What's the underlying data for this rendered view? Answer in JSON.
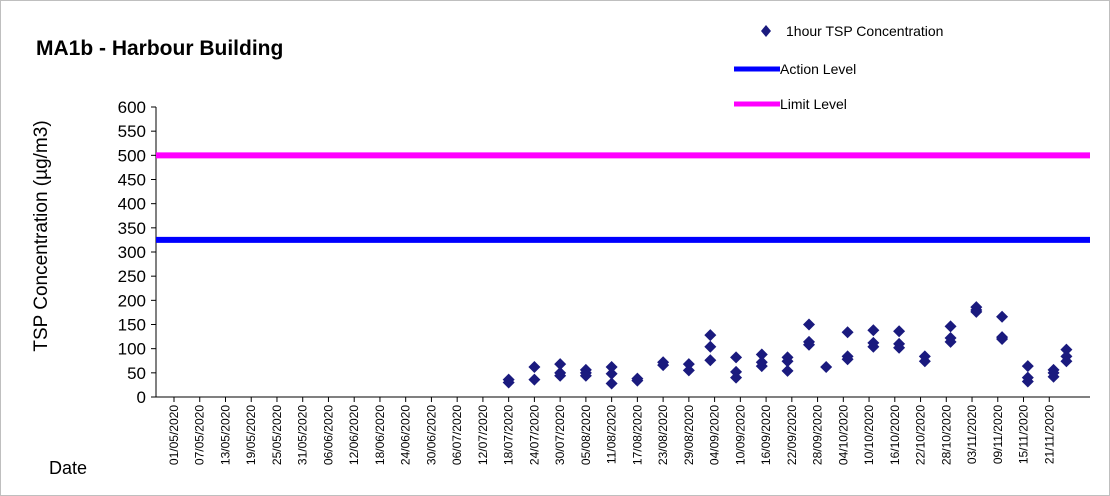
{
  "chart_data": {
    "type": "scatter",
    "title": "MA1b - Harbour Building",
    "xlabel": "Date",
    "ylabel": "TSP Concentration (µg/m3)",
    "ylim": [
      0,
      600
    ],
    "y_ticks": [
      "0",
      "50",
      "100",
      "150",
      "200",
      "250",
      "300",
      "350",
      "400",
      "450",
      "500",
      "550",
      "600"
    ],
    "x_range": [
      "01/05/2020",
      "27/11/2020"
    ],
    "x_ticks": [
      "01/05/2020",
      "07/05/2020",
      "13/05/2020",
      "19/05/2020",
      "25/05/2020",
      "31/05/2020",
      "06/06/2020",
      "12/06/2020",
      "18/06/2020",
      "24/06/2020",
      "30/06/2020",
      "06/07/2020",
      "12/07/2020",
      "18/07/2020",
      "24/07/2020",
      "30/07/2020",
      "05/08/2020",
      "11/08/2020",
      "17/08/2020",
      "23/08/2020",
      "29/08/2020",
      "04/09/2020",
      "10/09/2020",
      "16/09/2020",
      "22/09/2020",
      "28/09/2020",
      "04/10/2020",
      "10/10/2020",
      "16/10/2020",
      "22/10/2020",
      "28/10/2020",
      "03/11/2020",
      "09/11/2020",
      "15/11/2020",
      "21/11/2020"
    ],
    "grid": false,
    "legend_position": "top-right",
    "series": [
      {
        "name": "1hour TSP Concentration",
        "type": "scatter",
        "marker": "diamond",
        "color": "#1a1a7e",
        "points": [
          {
            "x": "18/07/2020",
            "y": 36
          },
          {
            "x": "18/07/2020",
            "y": 30
          },
          {
            "x": "24/07/2020",
            "y": 62
          },
          {
            "x": "24/07/2020",
            "y": 36
          },
          {
            "x": "30/07/2020",
            "y": 68
          },
          {
            "x": "30/07/2020",
            "y": 50
          },
          {
            "x": "30/07/2020",
            "y": 44
          },
          {
            "x": "05/08/2020",
            "y": 56
          },
          {
            "x": "05/08/2020",
            "y": 50
          },
          {
            "x": "05/08/2020",
            "y": 44
          },
          {
            "x": "11/08/2020",
            "y": 62
          },
          {
            "x": "11/08/2020",
            "y": 48
          },
          {
            "x": "11/08/2020",
            "y": 28
          },
          {
            "x": "17/08/2020",
            "y": 38
          },
          {
            "x": "17/08/2020",
            "y": 34
          },
          {
            "x": "23/08/2020",
            "y": 72
          },
          {
            "x": "23/08/2020",
            "y": 66
          },
          {
            "x": "29/08/2020",
            "y": 68
          },
          {
            "x": "29/08/2020",
            "y": 55
          },
          {
            "x": "03/09/2020",
            "y": 128
          },
          {
            "x": "03/09/2020",
            "y": 104
          },
          {
            "x": "03/09/2020",
            "y": 76
          },
          {
            "x": "09/09/2020",
            "y": 82
          },
          {
            "x": "09/09/2020",
            "y": 52
          },
          {
            "x": "09/09/2020",
            "y": 40
          },
          {
            "x": "15/09/2020",
            "y": 88
          },
          {
            "x": "15/09/2020",
            "y": 72
          },
          {
            "x": "15/09/2020",
            "y": 64
          },
          {
            "x": "21/09/2020",
            "y": 82
          },
          {
            "x": "21/09/2020",
            "y": 74
          },
          {
            "x": "21/09/2020",
            "y": 54
          },
          {
            "x": "26/09/2020",
            "y": 150
          },
          {
            "x": "26/09/2020",
            "y": 114
          },
          {
            "x": "26/09/2020",
            "y": 108
          },
          {
            "x": "30/09/2020",
            "y": 62
          },
          {
            "x": "05/10/2020",
            "y": 134
          },
          {
            "x": "05/10/2020",
            "y": 84
          },
          {
            "x": "05/10/2020",
            "y": 78
          },
          {
            "x": "11/10/2020",
            "y": 138
          },
          {
            "x": "11/10/2020",
            "y": 112
          },
          {
            "x": "11/10/2020",
            "y": 104
          },
          {
            "x": "17/10/2020",
            "y": 136
          },
          {
            "x": "17/10/2020",
            "y": 110
          },
          {
            "x": "17/10/2020",
            "y": 102
          },
          {
            "x": "23/10/2020",
            "y": 84
          },
          {
            "x": "23/10/2020",
            "y": 74
          },
          {
            "x": "29/10/2020",
            "y": 146
          },
          {
            "x": "29/10/2020",
            "y": 122
          },
          {
            "x": "29/10/2020",
            "y": 114
          },
          {
            "x": "04/11/2020",
            "y": 186
          },
          {
            "x": "04/11/2020",
            "y": 180
          },
          {
            "x": "04/11/2020",
            "y": 176
          },
          {
            "x": "10/11/2020",
            "y": 166
          },
          {
            "x": "10/11/2020",
            "y": 124
          },
          {
            "x": "10/11/2020",
            "y": 120
          },
          {
            "x": "16/11/2020",
            "y": 64
          },
          {
            "x": "16/11/2020",
            "y": 40
          },
          {
            "x": "16/11/2020",
            "y": 32
          },
          {
            "x": "22/11/2020",
            "y": 56
          },
          {
            "x": "22/11/2020",
            "y": 50
          },
          {
            "x": "22/11/2020",
            "y": 42
          },
          {
            "x": "25/11/2020",
            "y": 98
          },
          {
            "x": "25/11/2020",
            "y": 84
          },
          {
            "x": "25/11/2020",
            "y": 74
          }
        ]
      },
      {
        "name": "Action Level",
        "type": "line",
        "color": "#0000ff",
        "y": 325
      },
      {
        "name": "Limit Level",
        "type": "line",
        "color": "#ff00ff",
        "y": 500
      }
    ]
  }
}
